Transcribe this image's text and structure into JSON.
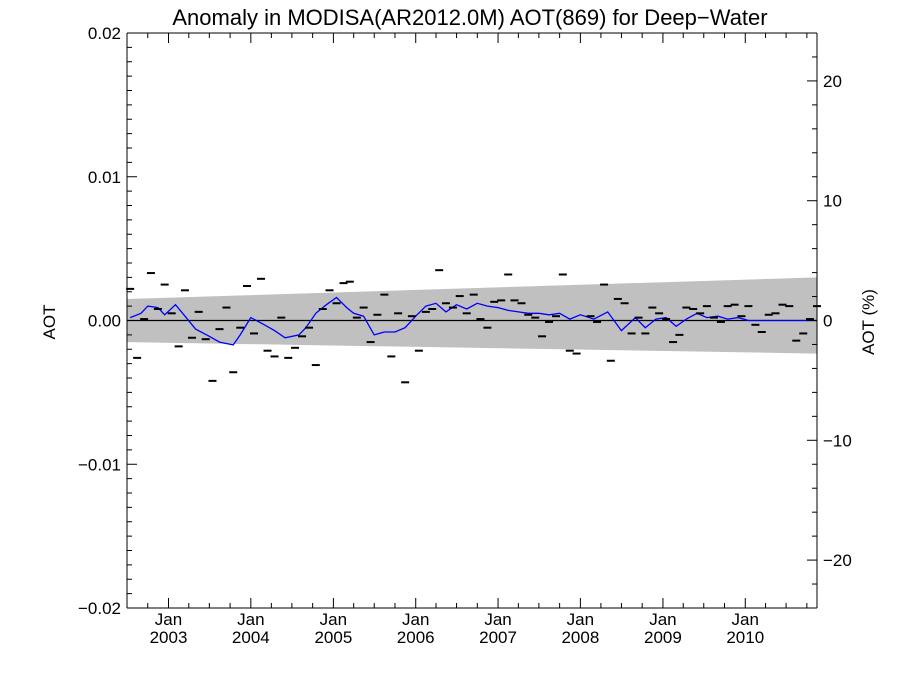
{
  "chart_data": {
    "type": "line",
    "title": "Anomaly in MODISA(AR2012.0M) AOT(869) for Deep−Water",
    "xlabel": "",
    "ylabel": "AOT",
    "ylabel_right": "AOT (%)",
    "xlim": [
      "2002-07-01",
      "2010-11-15"
    ],
    "ylim": [
      -0.02,
      0.02
    ],
    "ylim_right": [
      -24,
      24
    ],
    "x_ticks": [
      {
        "label": "Jan",
        "year": "2003",
        "date": "2003-01-01"
      },
      {
        "label": "Jan",
        "year": "2004",
        "date": "2004-01-01"
      },
      {
        "label": "Jan",
        "year": "2005",
        "date": "2005-01-01"
      },
      {
        "label": "Jan",
        "year": "2006",
        "date": "2006-01-01"
      },
      {
        "label": "Jan",
        "year": "2007",
        "date": "2007-01-01"
      },
      {
        "label": "Jan",
        "year": "2008",
        "date": "2008-01-01"
      },
      {
        "label": "Jan",
        "year": "2009",
        "date": "2009-01-01"
      },
      {
        "label": "Jan",
        "year": "2010",
        "date": "2010-01-01"
      }
    ],
    "y_ticks_left": [
      {
        "value": -0.02,
        "label": "−0.02"
      },
      {
        "value": -0.01,
        "label": "−0.01"
      },
      {
        "value": 0.0,
        "label": "0.00"
      },
      {
        "value": 0.01,
        "label": "0.01"
      },
      {
        "value": 0.02,
        "label": "0.02"
      }
    ],
    "y_ticks_right": [
      {
        "value": -20,
        "label": "−20"
      },
      {
        "value": -10,
        "label": "−10"
      },
      {
        "value": 0,
        "label": "0"
      },
      {
        "value": 10,
        "label": "10"
      },
      {
        "value": 20,
        "label": "20"
      }
    ],
    "band": {
      "x": [
        "2002-07-01",
        "2010-11-15"
      ],
      "upper": [
        0.0015,
        0.003
      ],
      "lower": [
        -0.0015,
        -0.0023
      ],
      "color": "#c0c0c0"
    },
    "zero_line": 0,
    "series": [
      {
        "kind": "points",
        "color": "#000000",
        "x": [
          "2002-07-15",
          "2002-08-15",
          "2002-09-15",
          "2002-10-15",
          "2002-11-15",
          "2002-12-15",
          "2003-01-15",
          "2003-02-15",
          "2003-03-15",
          "2003-04-15",
          "2003-05-15",
          "2003-06-15",
          "2003-07-15",
          "2003-08-15",
          "2003-09-15",
          "2003-10-15",
          "2003-11-15",
          "2003-12-15",
          "2004-01-15",
          "2004-02-15",
          "2004-03-15",
          "2004-04-15",
          "2004-05-15",
          "2004-06-15",
          "2004-07-15",
          "2004-08-15",
          "2004-09-15",
          "2004-10-15",
          "2004-11-15",
          "2004-12-15",
          "2005-01-15",
          "2005-02-15",
          "2005-03-15",
          "2005-04-15",
          "2005-05-15",
          "2005-06-15",
          "2005-07-15",
          "2005-08-15",
          "2005-09-15",
          "2005-10-15",
          "2005-11-15",
          "2005-12-15",
          "2006-01-15",
          "2006-02-15",
          "2006-03-15",
          "2006-04-15",
          "2006-05-15",
          "2006-06-15",
          "2006-07-15",
          "2006-08-15",
          "2006-09-15",
          "2006-10-15",
          "2006-11-15",
          "2006-12-15",
          "2007-01-15",
          "2007-02-15",
          "2007-03-15",
          "2007-04-15",
          "2007-05-15",
          "2007-06-15",
          "2007-07-15",
          "2007-08-15",
          "2007-09-15",
          "2007-10-15",
          "2007-11-15",
          "2007-12-15",
          "2008-02-15",
          "2008-03-15",
          "2008-04-15",
          "2008-05-15",
          "2008-06-15",
          "2008-07-15",
          "2008-08-15",
          "2008-09-15",
          "2008-10-15",
          "2008-11-15",
          "2008-12-15",
          "2009-01-15",
          "2009-02-15",
          "2009-03-15",
          "2009-04-15",
          "2009-05-15",
          "2009-06-15",
          "2009-07-15",
          "2009-08-15",
          "2009-09-15",
          "2009-10-15",
          "2009-11-15",
          "2009-12-15",
          "2010-01-15",
          "2010-02-15",
          "2010-03-15",
          "2010-04-15",
          "2010-05-15",
          "2010-06-15",
          "2010-07-15",
          "2010-08-15",
          "2010-09-15",
          "2010-10-15",
          "2010-11-15"
        ],
        "y": [
          0.0022,
          -0.0026,
          0.0001,
          0.0033,
          0.0008,
          0.0025,
          0.0005,
          -0.0018,
          0.0021,
          -0.0012,
          0.0006,
          -0.0013,
          -0.0042,
          -0.0006,
          0.0009,
          -0.0036,
          -0.0005,
          0.0024,
          -0.0009,
          0.0029,
          -0.0021,
          -0.0025,
          0.0002,
          -0.0026,
          -0.0019,
          -0.0011,
          -0.0005,
          -0.0031,
          0.0008,
          0.0021,
          0.0012,
          0.0026,
          0.0027,
          0.0002,
          0.0009,
          -0.0015,
          0.0004,
          0.0018,
          -0.0025,
          0.0005,
          -0.0043,
          0.0003,
          -0.0021,
          0.0006,
          0.0008,
          0.0035,
          0.0012,
          0.0009,
          0.0017,
          0.0005,
          0.0018,
          0.0001,
          -0.0005,
          0.0013,
          0.0014,
          0.0032,
          0.0014,
          0.0012,
          0.0004,
          0.0002,
          -0.0011,
          -0.0001,
          0.0003,
          0.0032,
          -0.0021,
          -0.0023,
          0.0003,
          -0.0001,
          0.0025,
          -0.0028,
          0.0015,
          0.0012,
          -0.0009,
          0.0002,
          -0.0009,
          0.0009,
          0.0005,
          0.0001,
          -0.0015,
          -0.001,
          0.0009,
          0.0008,
          0.0005,
          0.001,
          0.0002,
          -0.0001,
          0.001,
          0.0011,
          0.0003,
          0.001,
          -0.0003,
          -0.0008,
          0.0004,
          0.0005,
          0.0011,
          0.001,
          -0.0014,
          -0.0009,
          0.0001,
          0.001
        ]
      },
      {
        "kind": "line",
        "color": "#0000ff",
        "x": [
          "2002-07-15",
          "2002-09-01",
          "2002-10-01",
          "2002-11-15",
          "2002-12-15",
          "2003-02-01",
          "2003-03-15",
          "2003-05-01",
          "2003-07-01",
          "2003-08-15",
          "2003-10-15",
          "2003-11-15",
          "2004-01-01",
          "2004-03-01",
          "2004-04-15",
          "2004-06-01",
          "2004-08-01",
          "2004-09-01",
          "2004-10-15",
          "2004-12-01",
          "2005-01-15",
          "2005-03-01",
          "2005-04-01",
          "2005-05-15",
          "2005-07-01",
          "2005-08-15",
          "2005-10-01",
          "2005-11-15",
          "2006-01-01",
          "2006-02-15",
          "2006-04-01",
          "2006-05-15",
          "2006-07-01",
          "2006-08-15",
          "2006-10-01",
          "2006-11-15",
          "2007-01-01",
          "2007-02-15",
          "2007-04-01",
          "2007-05-15",
          "2007-07-01",
          "2007-08-15",
          "2007-10-01",
          "2007-11-15",
          "2008-01-01",
          "2008-03-01",
          "2008-05-01",
          "2008-07-01",
          "2008-09-01",
          "2008-10-15",
          "2008-12-01",
          "2009-01-15",
          "2009-03-01",
          "2009-04-15",
          "2009-06-01",
          "2009-07-15",
          "2009-09-01",
          "2009-10-15",
          "2009-12-01",
          "2010-01-15",
          "2010-03-01",
          "2010-04-15",
          "2010-06-01",
          "2010-07-15",
          "2010-09-01",
          "2010-10-15",
          "2010-11-15"
        ],
        "y": [
          0.0002,
          0.0005,
          0.001,
          0.0009,
          0.0004,
          0.0011,
          0.0003,
          -0.0006,
          -0.0011,
          -0.0015,
          -0.0017,
          -0.001,
          0.0002,
          -0.0003,
          -0.0007,
          -0.0012,
          -0.001,
          -0.0005,
          0.0005,
          0.0011,
          0.0016,
          0.0009,
          0.0005,
          0.0003,
          -0.001,
          -0.0008,
          -0.0008,
          -0.0005,
          0.0003,
          0.001,
          0.0012,
          0.0006,
          0.0011,
          0.0008,
          0.0012,
          0.001,
          0.0009,
          0.0007,
          0.0006,
          0.0005,
          0.0005,
          0.0004,
          0.0005,
          0.0001,
          0.0004,
          0.0001,
          0.0006,
          -0.0007,
          0.0002,
          -0.0005,
          0.0001,
          0.0002,
          -0.0004,
          0.0001,
          0.0005,
          0.0002,
          0.0003,
          0.0001,
          0.0002,
          0.0,
          0.0,
          0.0,
          0.0,
          0.0,
          0.0,
          0.0,
          0.0
        ]
      }
    ],
    "grid": false,
    "legend": "none"
  }
}
